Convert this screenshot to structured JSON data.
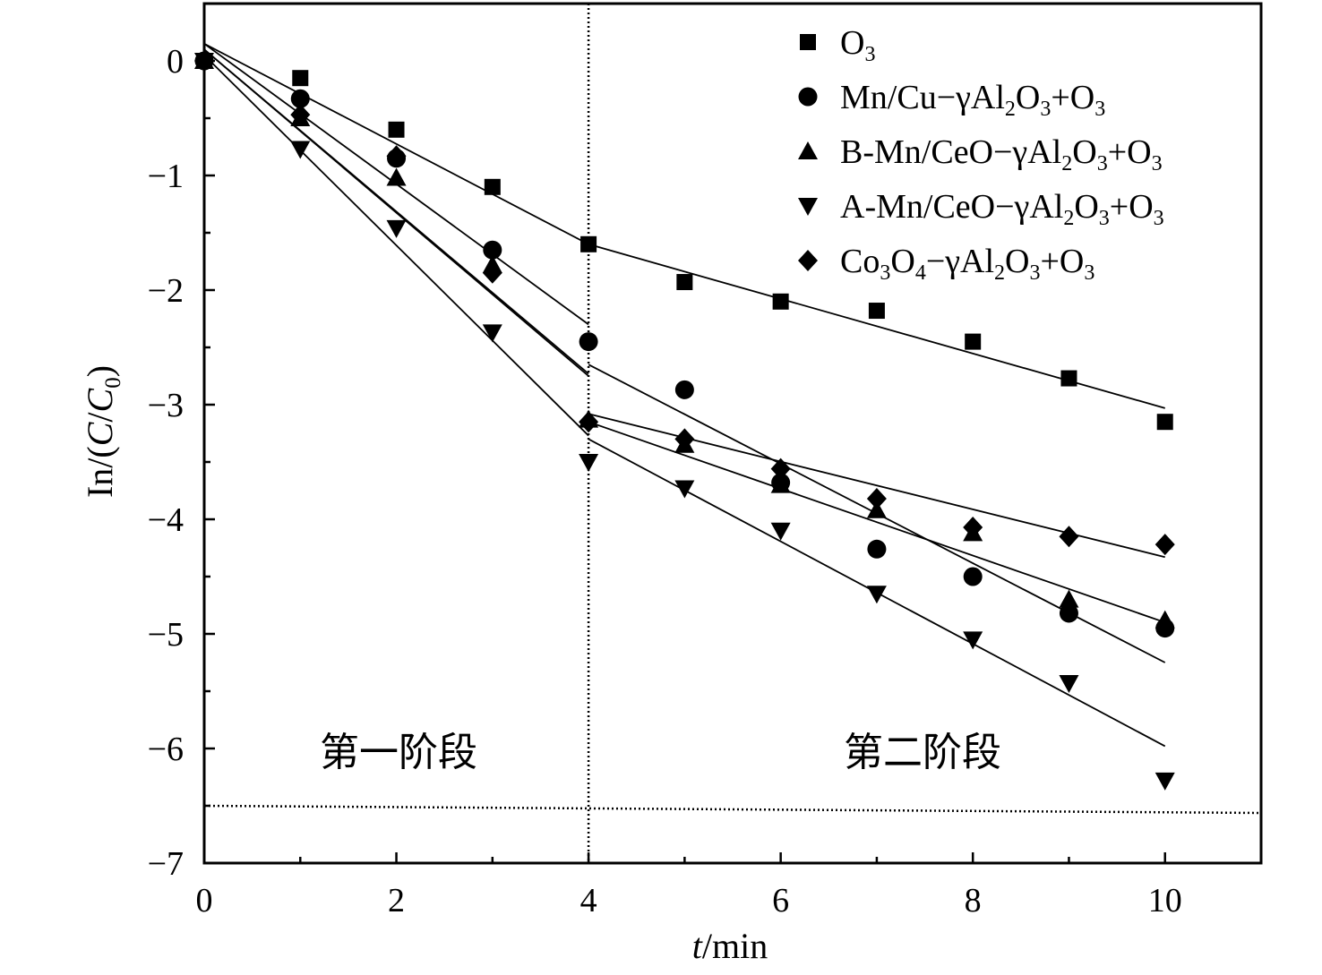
{
  "chart_data": {
    "type": "scatter",
    "xlabel": "t/min",
    "ylabel": "In/(C/C0)",
    "xlim": [
      0,
      11
    ],
    "ylim": [
      -7,
      0.5
    ],
    "x_ticks": [
      "0",
      "2",
      "4",
      "6",
      "8",
      "10"
    ],
    "y_ticks": [
      "0",
      "−1",
      "−2",
      "−3",
      "−4",
      "−5",
      "−6",
      "−7"
    ],
    "x_tick_values": [
      0,
      2,
      4,
      6,
      8,
      10
    ],
    "y_tick_values": [
      0,
      -1,
      -2,
      -3,
      -4,
      -5,
      -6,
      -7
    ],
    "grid": false,
    "legend_position": "top-right",
    "stage_divider_x": 4,
    "baseline_y": -6.5,
    "annotations": [
      "第一阶段",
      "第二阶段"
    ],
    "series": [
      {
        "name": "O3",
        "marker": "square",
        "x": [
          0,
          1,
          2,
          3,
          4,
          5,
          6,
          7,
          8,
          9,
          10
        ],
        "y": [
          0,
          -0.15,
          -0.6,
          -1.1,
          -1.6,
          -1.93,
          -2.1,
          -2.18,
          -2.45,
          -2.77,
          -3.15
        ],
        "fit1": [
          [
            0,
            0.15
          ],
          [
            4,
            -1.6
          ]
        ],
        "fit2": [
          [
            4,
            -1.6
          ],
          [
            10,
            -3.03
          ]
        ]
      },
      {
        "name": "Mn/Cu−γAl2O3+O3",
        "marker": "circle",
        "x": [
          0,
          1,
          2,
          3,
          4,
          5,
          6,
          7,
          8,
          9,
          10
        ],
        "y": [
          0,
          -0.33,
          -0.85,
          -1.65,
          -2.45,
          -2.87,
          -3.68,
          -4.26,
          -4.5,
          -4.82,
          -4.95
        ],
        "fit1": [
          [
            0,
            0.15
          ],
          [
            4,
            -2.3
          ]
        ],
        "fit2": [
          [
            4,
            -2.65
          ],
          [
            10,
            -5.25
          ]
        ]
      },
      {
        "name": "B-Mn/CeO−γAl2O3+O3",
        "marker": "triangle-up",
        "x": [
          0,
          1,
          2,
          3,
          4,
          5,
          6,
          7,
          8,
          9,
          10
        ],
        "y": [
          0,
          -0.5,
          -1.02,
          -1.78,
          -3.13,
          -3.35,
          -3.7,
          -3.92,
          -4.12,
          -4.7,
          -4.88
        ],
        "fit1": [
          [
            0,
            0.1
          ],
          [
            4,
            -2.73
          ]
        ],
        "fit2": [
          [
            4,
            -3.15
          ],
          [
            10,
            -4.9
          ]
        ]
      },
      {
        "name": "A-Mn/CeO−γAl2O3+O3",
        "marker": "triangle-down",
        "x": [
          0,
          1,
          2,
          3,
          4,
          5,
          6,
          7,
          8,
          9,
          10
        ],
        "y": [
          0,
          -0.77,
          -1.46,
          -2.37,
          -3.5,
          -3.73,
          -4.1,
          -4.65,
          -5.05,
          -5.43,
          -6.28
        ],
        "fit1": [
          [
            0,
            0.05
          ],
          [
            4,
            -3.27
          ]
        ],
        "fit2": [
          [
            4,
            -3.3
          ],
          [
            10,
            -5.98
          ]
        ]
      },
      {
        "name": "Co3O4−γAl2O3+O3",
        "marker": "diamond",
        "x": [
          0,
          1,
          2,
          3,
          4,
          5,
          6,
          7,
          8,
          9,
          10
        ],
        "y": [
          0,
          -0.47,
          -0.83,
          -1.85,
          -3.15,
          -3.3,
          -3.56,
          -3.82,
          -4.07,
          -4.15,
          -4.22
        ],
        "fit1": [
          [
            0,
            0.1
          ],
          [
            4,
            -2.75
          ]
        ],
        "fit2": [
          [
            4,
            -3.08
          ],
          [
            10,
            -4.33
          ]
        ]
      }
    ],
    "legend": [
      {
        "marker": "square",
        "parts": [
          [
            "O",
            ""
          ],
          [
            "3",
            "sub"
          ]
        ]
      },
      {
        "marker": "circle",
        "parts": [
          [
            "Mn/Cu−γAl",
            ""
          ],
          [
            "2",
            "sub"
          ],
          [
            "O",
            ""
          ],
          [
            "3",
            "sub"
          ],
          [
            "+O",
            ""
          ],
          [
            "3",
            "sub"
          ]
        ]
      },
      {
        "marker": "triangle-up",
        "parts": [
          [
            "B-Mn/CeO−γAl",
            ""
          ],
          [
            "2",
            "sub"
          ],
          [
            "O",
            ""
          ],
          [
            "3",
            "sub"
          ],
          [
            "+O",
            ""
          ],
          [
            "3",
            "sub"
          ]
        ]
      },
      {
        "marker": "triangle-down",
        "parts": [
          [
            "A-Mn/CeO−γAl",
            ""
          ],
          [
            "2",
            "sub"
          ],
          [
            "O",
            ""
          ],
          [
            "3",
            "sub"
          ],
          [
            "+O",
            ""
          ],
          [
            "3",
            "sub"
          ]
        ]
      },
      {
        "marker": "diamond",
        "parts": [
          [
            "Co",
            ""
          ],
          [
            "3",
            "sub"
          ],
          [
            "O",
            ""
          ],
          [
            "4",
            "sub"
          ],
          [
            "−γAl",
            ""
          ],
          [
            "2",
            "sub"
          ],
          [
            "O",
            ""
          ],
          [
            "3",
            "sub"
          ],
          [
            "+O",
            ""
          ],
          [
            "3",
            "sub"
          ]
        ]
      }
    ],
    "ylabel_parts": [
      [
        "In/(",
        ""
      ],
      [
        "C",
        "i"
      ],
      [
        "/",
        ""
      ],
      [
        "C",
        "i"
      ],
      [
        "0",
        "sub"
      ],
      [
        ")",
        ""
      ]
    ],
    "xlabel_parts": [
      [
        "t",
        "i"
      ],
      [
        "/min",
        ""
      ]
    ]
  }
}
